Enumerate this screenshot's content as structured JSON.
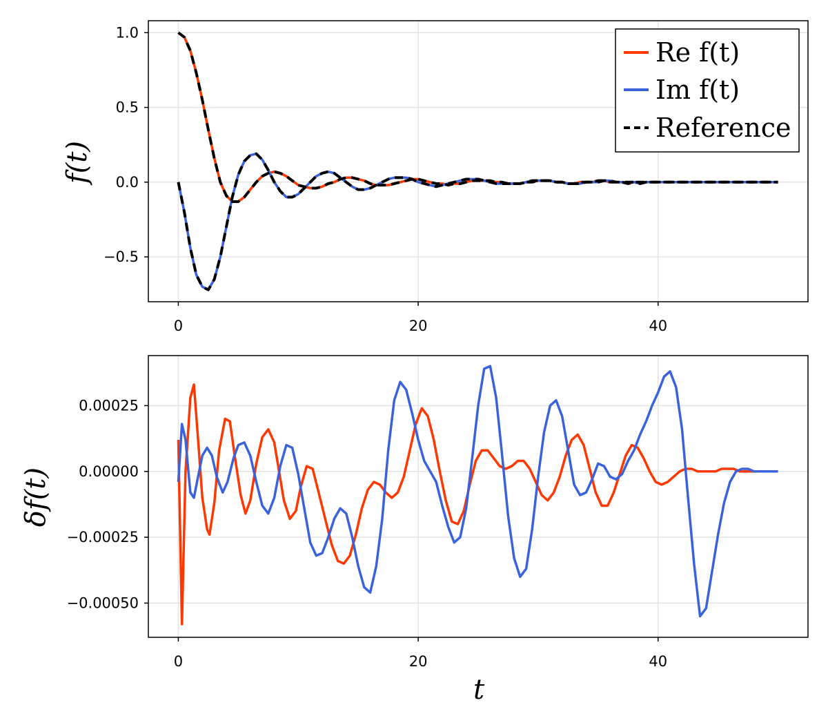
{
  "chart_data": [
    {
      "type": "line",
      "ylabel": "f(t)",
      "xlabel": "",
      "xlim": [
        -2.5,
        52.5
      ],
      "ylim": [
        -0.8,
        1.08
      ],
      "xticks": [
        0,
        20,
        40
      ],
      "xtick_labels": [
        "0",
        "20",
        "40"
      ],
      "yticks": [
        1.0,
        0.5,
        0.0,
        -0.5
      ],
      "ytick_labels": [
        "1.0",
        "0.5",
        "0.0",
        "−0.5"
      ],
      "grid": true,
      "legend_position": "top-right",
      "x": [
        0,
        0.5,
        1,
        1.5,
        2,
        2.5,
        3,
        3.5,
        4,
        4.5,
        5,
        5.5,
        6,
        6.5,
        7,
        7.5,
        8,
        8.5,
        9,
        9.5,
        10,
        10.5,
        11,
        11.5,
        12,
        12.5,
        13,
        13.5,
        14,
        14.5,
        15,
        15.5,
        16,
        16.5,
        17,
        17.5,
        18,
        18.5,
        19,
        19.5,
        20,
        20.5,
        21,
        21.5,
        22,
        22.5,
        23,
        23.5,
        24,
        24.5,
        25,
        25.5,
        26,
        26.5,
        27,
        27.5,
        28,
        28.5,
        29,
        29.5,
        30,
        30.5,
        31,
        31.5,
        32,
        32.5,
        33,
        33.5,
        34,
        34.5,
        35,
        35.5,
        36,
        36.5,
        37,
        37.5,
        38,
        38.5,
        39,
        39.5,
        40,
        40.5,
        41,
        41.5,
        42,
        42.5,
        43,
        43.5,
        44,
        44.5,
        45,
        45.5,
        46,
        46.5,
        47,
        47.5,
        48,
        48.5,
        49,
        49.5,
        50
      ],
      "series": [
        {
          "name": "Re f(t)",
          "color": "#ff3700",
          "dash": "solid",
          "values": [
            1.0,
            0.97,
            0.88,
            0.73,
            0.55,
            0.35,
            0.16,
            0.0,
            -0.09,
            -0.13,
            -0.13,
            -0.1,
            -0.05,
            0.0,
            0.04,
            0.06,
            0.07,
            0.06,
            0.04,
            0.01,
            -0.02,
            -0.03,
            -0.04,
            -0.04,
            -0.03,
            -0.01,
            0.0,
            0.02,
            0.03,
            0.03,
            0.02,
            0.01,
            -0.01,
            -0.02,
            -0.02,
            -0.02,
            -0.01,
            0.0,
            0.01,
            0.02,
            0.02,
            0.01,
            0.0,
            -0.01,
            -0.01,
            -0.02,
            -0.01,
            -0.01,
            0.0,
            0.01,
            0.01,
            0.01,
            0.01,
            0.0,
            0.0,
            -0.01,
            -0.01,
            -0.01,
            0.0,
            0.0,
            0.01,
            0.01,
            0.01,
            0.0,
            0.0,
            -0.01,
            -0.01,
            0.0,
            0.0,
            0.0,
            0.01,
            0.01,
            0.0,
            0.0,
            0.0,
            -0.01,
            0.0,
            0.0,
            0.0,
            0.0,
            0.0,
            0.0,
            0.0,
            0.0,
            0.0,
            0.0,
            0.0,
            0.0,
            0.0,
            0.0,
            0.0,
            0.0,
            0.0,
            0.0,
            0.0,
            0.0,
            0.0,
            0.0,
            0.0,
            0.0,
            0.0
          ]
        },
        {
          "name": "Im f(t)",
          "color": "#3a63db",
          "dash": "solid",
          "values": [
            0.0,
            -0.2,
            -0.44,
            -0.62,
            -0.7,
            -0.72,
            -0.65,
            -0.5,
            -0.3,
            -0.1,
            0.05,
            0.14,
            0.18,
            0.19,
            0.15,
            0.08,
            0.0,
            -0.06,
            -0.1,
            -0.1,
            -0.08,
            -0.04,
            0.0,
            0.04,
            0.06,
            0.07,
            0.06,
            0.03,
            0.0,
            -0.03,
            -0.05,
            -0.05,
            -0.04,
            -0.02,
            0.0,
            0.02,
            0.03,
            0.03,
            0.03,
            0.02,
            0.0,
            -0.01,
            -0.02,
            -0.03,
            -0.02,
            -0.01,
            0.0,
            0.01,
            0.02,
            0.02,
            0.02,
            0.01,
            0.0,
            -0.01,
            -0.01,
            -0.01,
            -0.01,
            -0.01,
            0.0,
            0.01,
            0.01,
            0.01,
            0.01,
            0.0,
            0.0,
            -0.01,
            -0.01,
            -0.01,
            0.0,
            0.0,
            0.0,
            0.01,
            0.01,
            0.0,
            0.0,
            0.0,
            0.0,
            -0.01,
            0.0,
            0.0,
            0.0,
            0.0,
            0.0,
            0.0,
            0.0,
            0.0,
            0.0,
            0.0,
            0.0,
            0.0,
            0.0,
            0.0,
            0.0,
            0.0,
            0.0,
            0.0,
            0.0,
            0.0,
            0.0,
            0.0,
            0.0
          ]
        },
        {
          "name": "Reference",
          "color": "#000000",
          "dash": "dashed",
          "reference_of": [
            "Re f(t)",
            "Im f(t)"
          ]
        }
      ]
    },
    {
      "type": "line",
      "ylabel": "δf(t)",
      "xlabel": "t",
      "xlim": [
        -2.5,
        52.5
      ],
      "ylim": [
        -0.00063,
        0.00044
      ],
      "xticks": [
        0,
        20,
        40
      ],
      "xtick_labels": [
        "0",
        "20",
        "40"
      ],
      "yticks": [
        0.00025,
        0.0,
        -0.00025,
        -0.0005
      ],
      "ytick_labels": [
        "0.00025",
        "0.00000",
        "−0.00025",
        "−0.00050"
      ],
      "grid": true,
      "series": [
        {
          "color": "#ff3700",
          "x": [
            0,
            0.3,
            0.6,
            1.0,
            1.3,
            1.6,
            2.0,
            2.4,
            2.6,
            3.0,
            3.4,
            3.9,
            4.3,
            4.7,
            5.2,
            5.6,
            6.0,
            6.5,
            7.0,
            7.5,
            8.0,
            8.4,
            8.8,
            9.3,
            9.8,
            10.2,
            10.7,
            11.2,
            11.7,
            12.3,
            12.8,
            13.3,
            13.8,
            14.3,
            14.8,
            15.3,
            15.8,
            16.3,
            16.8,
            17.3,
            17.8,
            18.3,
            18.8,
            19.3,
            19.8,
            20.3,
            20.8,
            21.3,
            21.8,
            22.3,
            22.8,
            23.3,
            23.8,
            24.3,
            24.8,
            25.3,
            25.8,
            26.3,
            26.8,
            27.3,
            27.8,
            28.3,
            28.8,
            29.3,
            29.8,
            30.3,
            30.8,
            31.3,
            31.8,
            32.3,
            32.8,
            33.3,
            33.8,
            34.3,
            34.8,
            35.3,
            35.8,
            36.3,
            36.8,
            37.3,
            37.8,
            38.3,
            38.8,
            39.3,
            39.8,
            40.3,
            40.8,
            41.3,
            41.8,
            42.3,
            42.8,
            43.3,
            43.8,
            44.3,
            44.8,
            45.3,
            45.8,
            46.3,
            46.8,
            47.3,
            47.8,
            48.3,
            48.8,
            49.3,
            49.8,
            50.0
          ],
          "values": [
            0.00012,
            -0.00058,
            0.0,
            0.00028,
            0.00033,
            0.00015,
            -0.0001,
            -0.00022,
            -0.00024,
            -0.00012,
            8e-05,
            0.0002,
            0.00019,
            6e-05,
            -9e-05,
            -0.00016,
            -0.00011,
            3e-05,
            0.00013,
            0.00016,
            0.00011,
            0.0,
            -0.00011,
            -0.00018,
            -0.00015,
            -6e-05,
            2e-05,
            1e-05,
            -8e-05,
            -0.00019,
            -0.00028,
            -0.00034,
            -0.00035,
            -0.00032,
            -0.00024,
            -0.00014,
            -7e-05,
            -4e-05,
            -5e-05,
            -8e-05,
            -0.0001,
            -8e-05,
            -2e-05,
            8e-05,
            0.00018,
            0.00024,
            0.00021,
            0.00012,
            0.0,
            -0.00011,
            -0.00019,
            -0.0002,
            -0.00015,
            -5e-05,
            4e-05,
            8e-05,
            8e-05,
            5e-05,
            2e-05,
            1e-05,
            2e-05,
            4e-05,
            4e-05,
            1e-05,
            -4e-05,
            -9e-05,
            -0.00011,
            -8e-05,
            -2e-05,
            6e-05,
            0.00012,
            0.00014,
            0.0001,
            1e-05,
            -8e-05,
            -0.00013,
            -0.00013,
            -8e-05,
            -1e-05,
            6e-05,
            0.0001,
            9e-05,
            5e-05,
            0.0,
            -4e-05,
            -5e-05,
            -4e-05,
            -2e-05,
            0.0,
            1e-05,
            1e-05,
            0.0,
            0.0,
            0.0,
            0.0,
            1e-05,
            1e-05,
            1e-05,
            0.0,
            0.0,
            0.0,
            0.0,
            0.0,
            0.0,
            0.0,
            0.0
          ]
        },
        {
          "color": "#3a63db",
          "x": [
            0,
            0.3,
            0.6,
            1.0,
            1.3,
            1.6,
            2.0,
            2.4,
            2.8,
            3.2,
            3.7,
            4.1,
            4.6,
            5.0,
            5.5,
            6.0,
            6.5,
            7.0,
            7.5,
            8.0,
            8.5,
            9.0,
            9.5,
            10.0,
            10.5,
            11.0,
            11.5,
            12.0,
            12.5,
            13.0,
            13.5,
            14.0,
            14.5,
            15.0,
            15.5,
            16.0,
            16.5,
            17.0,
            17.5,
            18.0,
            18.5,
            19.0,
            19.5,
            20.0,
            20.5,
            21.0,
            21.5,
            22.0,
            22.5,
            23.0,
            23.5,
            24.0,
            24.5,
            25.0,
            25.5,
            26.0,
            26.5,
            27.0,
            27.5,
            28.0,
            28.5,
            29.0,
            29.5,
            30.0,
            30.5,
            31.0,
            31.5,
            32.0,
            32.5,
            33.0,
            33.5,
            34.0,
            34.5,
            35.0,
            35.5,
            36.0,
            36.5,
            37.0,
            37.5,
            38.0,
            38.5,
            39.0,
            39.5,
            40.0,
            40.5,
            41.0,
            41.5,
            42.0,
            42.5,
            43.0,
            43.5,
            44.0,
            44.5,
            45.0,
            45.5,
            46.0,
            46.5,
            47.0,
            47.5,
            48.0,
            48.5,
            49.0,
            49.5,
            50.0
          ],
          "values": [
            -4e-05,
            0.00018,
            0.00012,
            -8e-05,
            -0.0001,
            -3e-05,
            6e-05,
            9e-05,
            6e-05,
            -2e-05,
            -8e-05,
            -4e-05,
            5e-05,
            0.0001,
            0.00011,
            6e-05,
            -4e-05,
            -0.00013,
            -0.00016,
            -0.0001,
            2e-05,
            0.0001,
            9e-05,
            -1e-05,
            -0.00014,
            -0.00027,
            -0.00032,
            -0.00031,
            -0.00025,
            -0.00018,
            -0.00014,
            -0.00016,
            -0.00025,
            -0.00036,
            -0.00044,
            -0.00046,
            -0.00036,
            -0.00018,
            8e-05,
            0.00027,
            0.00034,
            0.00031,
            0.00022,
            0.00012,
            4e-05,
            0.0,
            -4e-05,
            -0.00013,
            -0.00021,
            -0.00027,
            -0.00025,
            -0.00014,
            5e-05,
            0.00025,
            0.00039,
            0.0004,
            0.00028,
            6e-05,
            -0.00017,
            -0.00033,
            -0.0004,
            -0.00037,
            -0.00022,
            -2e-05,
            0.00015,
            0.00025,
            0.00027,
            0.00021,
            8e-05,
            -5e-05,
            -9e-05,
            -8e-05,
            -3e-05,
            3e-05,
            2e-05,
            -2e-05,
            -3e-05,
            -1e-05,
            4e-05,
            8e-05,
            0.00014,
            0.00019,
            0.00025,
            0.0003,
            0.00036,
            0.00038,
            0.00032,
            0.00016,
            -0.0001,
            -0.00035,
            -0.00055,
            -0.00052,
            -0.00038,
            -0.00024,
            -0.00012,
            -4e-05,
            0.0,
            1e-05,
            1e-05,
            0.0,
            0.0,
            0.0,
            0.0,
            0.0
          ]
        }
      ]
    }
  ]
}
